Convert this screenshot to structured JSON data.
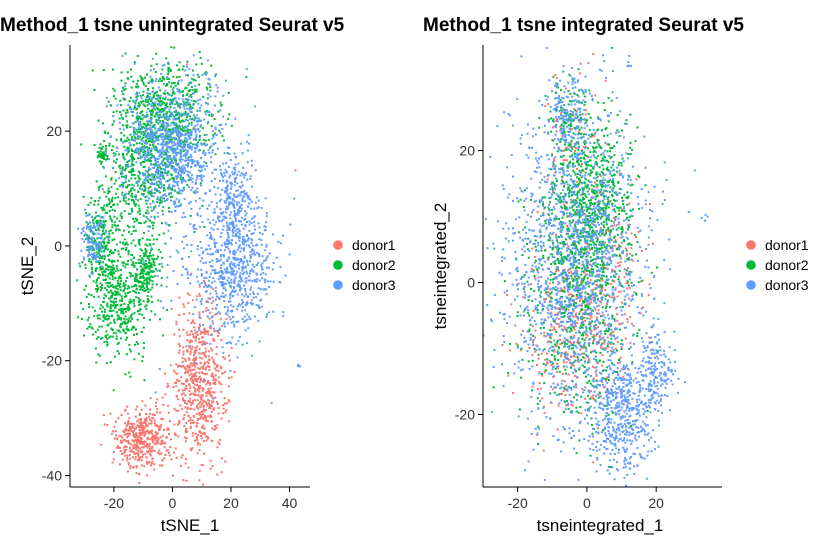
{
  "chart_data": [
    {
      "type": "scatter",
      "title": "Method_1 tsne unintegrated Seurat v5",
      "xlabel": "tSNE_1",
      "ylabel": "tSNE_2",
      "xlim": [
        -35,
        47
      ],
      "ylim": [
        -42,
        35
      ],
      "xticks": [
        -20,
        0,
        20,
        40
      ],
      "yticks": [
        -40,
        -20,
        0,
        20
      ],
      "grid": false,
      "legend_position": "right",
      "series": [
        {
          "name": "donor1",
          "color": "#F8766D",
          "clusters": [
            {
              "cx": 9,
              "cy": -24,
              "sx": 4.8,
              "sy": 7.0,
              "n": 650
            },
            {
              "cx": -10,
              "cy": -33.5,
              "sx": 4.5,
              "sy": 2.6,
              "n": 420
            },
            {
              "cx": 8,
              "cy": -1,
              "sx": 22,
              "sy": 25,
              "n": 8
            }
          ]
        },
        {
          "name": "donor2",
          "color": "#00BA38",
          "clusters": [
            {
              "cx": -3,
              "cy": 23,
              "sx": 9,
              "sy": 4.5,
              "n": 700
            },
            {
              "cx": -10,
              "cy": 12,
              "sx": 7,
              "sy": 4.5,
              "n": 450
            },
            {
              "cx": -18,
              "cy": -9,
              "sx": 5.5,
              "sy": 5.5,
              "n": 500
            },
            {
              "cx": -24,
              "cy": 1,
              "sx": 3,
              "sy": 4,
              "n": 240
            },
            {
              "cx": -9,
              "cy": -4,
              "sx": 2.5,
              "sy": 2.5,
              "n": 160
            },
            {
              "cx": -24,
              "cy": 16,
              "sx": 0.8,
              "sy": 1,
              "n": 40
            }
          ]
        },
        {
          "name": "donor3",
          "color": "#619CFF",
          "clusters": [
            {
              "cx": 0,
              "cy": 17,
              "sx": 8.5,
              "sy": 5.5,
              "n": 900
            },
            {
              "cx": 21,
              "cy": -4,
              "sx": 7,
              "sy": 6,
              "n": 650
            },
            {
              "cx": 21,
              "cy": 8,
              "sx": 3.5,
              "sy": 4,
              "n": 220
            },
            {
              "cx": -27,
              "cy": 1,
              "sx": 2,
              "sy": 2.5,
              "n": 120
            },
            {
              "cx": 6,
              "cy": 0,
              "sx": 12,
              "sy": 12,
              "n": 60
            },
            {
              "cx": 43,
              "cy": -21,
              "sx": 0.4,
              "sy": 0.4,
              "n": 4
            }
          ]
        }
      ]
    },
    {
      "type": "scatter",
      "title": "Method_1 tsne integrated Seurat v5",
      "xlabel": "tsneintegrated_1",
      "ylabel": "tsneintegrated_2",
      "xlim": [
        -30,
        39
      ],
      "ylim": [
        -31,
        36
      ],
      "xticks": [
        -20,
        0,
        20
      ],
      "yticks": [
        -20,
        0,
        20
      ],
      "grid": false,
      "legend_position": "right",
      "series": [
        {
          "name": "donor1",
          "color": "#F8766D",
          "clusters": [
            {
              "cx": -4,
              "cy": -6,
              "sx": 7,
              "sy": 7,
              "n": 380
            },
            {
              "cx": 6,
              "cy": 2,
              "sx": 6,
              "sy": 8,
              "n": 180
            },
            {
              "cx": -5,
              "cy": 20,
              "sx": 4,
              "sy": 6,
              "n": 90
            }
          ]
        },
        {
          "name": "donor2",
          "color": "#00BA38",
          "clusters": [
            {
              "cx": 1,
              "cy": 12,
              "sx": 6,
              "sy": 7,
              "n": 700
            },
            {
              "cx": -3,
              "cy": -2,
              "sx": 8,
              "sy": 9,
              "n": 650
            },
            {
              "cx": -6,
              "cy": 24,
              "sx": 2.5,
              "sy": 4,
              "n": 90
            }
          ]
        },
        {
          "name": "donor3",
          "color": "#619CFF",
          "clusters": [
            {
              "cx": -4,
              "cy": 3,
              "sx": 10,
              "sy": 12,
              "n": 1500
            },
            {
              "cx": 10,
              "cy": -20,
              "sx": 4.5,
              "sy": 4.5,
              "n": 480
            },
            {
              "cx": 20,
              "cy": -14,
              "sx": 2.5,
              "sy": 3.5,
              "n": 170
            },
            {
              "cx": -5,
              "cy": 26,
              "sx": 3,
              "sy": 3,
              "n": 140
            },
            {
              "cx": 12,
              "cy": 33,
              "sx": 0.4,
              "sy": 0.6,
              "n": 5
            },
            {
              "cx": 34,
              "cy": 10,
              "sx": 0.5,
              "sy": 0.3,
              "n": 4
            }
          ]
        }
      ]
    }
  ]
}
